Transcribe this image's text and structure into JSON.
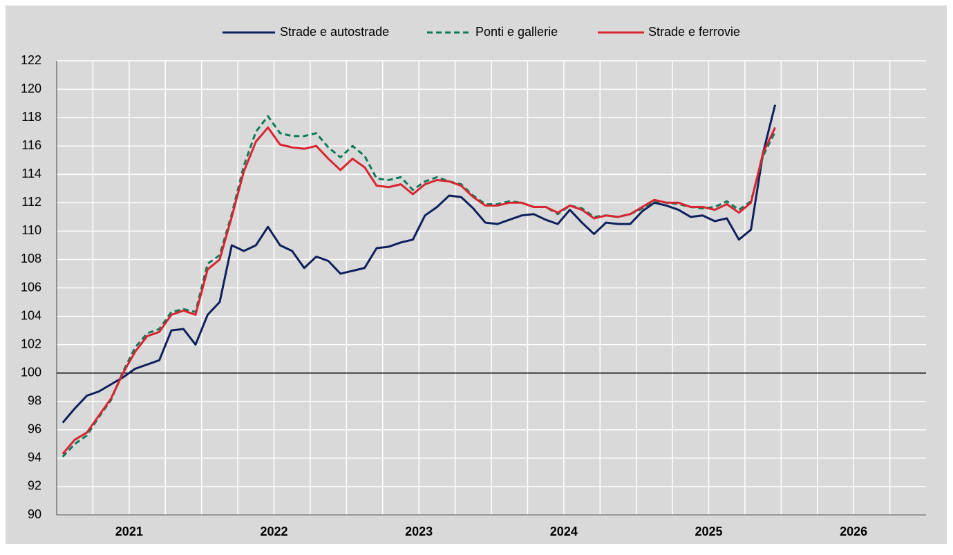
{
  "chart_data": {
    "type": "line",
    "categories": [
      "2021",
      null,
      null,
      null,
      null,
      null,
      null,
      null,
      null,
      null,
      null,
      null,
      "2022",
      null,
      null,
      null,
      null,
      null,
      null,
      null,
      null,
      null,
      null,
      null,
      "2023",
      null,
      null,
      null,
      null,
      null,
      null,
      null,
      null,
      null,
      null,
      null,
      "2024",
      null,
      null,
      null,
      null,
      null,
      null,
      null,
      null,
      null,
      null,
      null,
      "2025",
      null,
      null,
      null,
      null,
      null,
      null,
      null,
      null,
      null,
      null,
      null,
      "2026",
      null,
      null,
      null,
      null,
      null,
      null,
      null,
      null,
      null,
      null,
      null
    ],
    "series": [
      {
        "name": "Strade e autostrade",
        "color": "#0d1f5c",
        "dash": false,
        "values": [
          96.5,
          97.5,
          98.4,
          98.7,
          99.2,
          99.7,
          100.3,
          100.6,
          100.9,
          103.0,
          103.1,
          102.0,
          104.1,
          105.0,
          109.0,
          108.6,
          109.0,
          110.3,
          109.0,
          108.6,
          107.4,
          108.2,
          107.9,
          107.0,
          107.2,
          107.4,
          108.8,
          108.9,
          109.2,
          109.4,
          111.1,
          111.7,
          112.5,
          112.4,
          111.6,
          110.6,
          110.5,
          110.8,
          111.1,
          111.2,
          110.8,
          110.5,
          111.5,
          110.6,
          109.8,
          110.6,
          110.5,
          110.5,
          111.4,
          112.0,
          111.8,
          111.5,
          111.0,
          111.1,
          110.7,
          110.9,
          109.4,
          110.1,
          115.5,
          118.9,
          null,
          null,
          null,
          null,
          null,
          null,
          null,
          null,
          null,
          null,
          null,
          null
        ]
      },
      {
        "name": "Ponti e gallerie",
        "color": "#0a7a5a",
        "dash": true,
        "values": [
          94.1,
          95.0,
          95.6,
          96.9,
          98.1,
          100.1,
          101.8,
          102.8,
          103.1,
          104.3,
          104.5,
          104.3,
          107.7,
          108.3,
          111.2,
          114.6,
          117.0,
          118.1,
          116.9,
          116.7,
          116.7,
          116.9,
          115.9,
          115.2,
          116.0,
          115.3,
          113.7,
          113.6,
          113.8,
          112.9,
          113.5,
          113.8,
          113.5,
          113.3,
          112.5,
          111.9,
          111.9,
          112.1,
          112.0,
          111.7,
          111.7,
          111.2,
          111.8,
          111.6,
          111.0,
          111.1,
          111.0,
          111.2,
          111.6,
          112.1,
          112.0,
          111.9,
          111.7,
          111.6,
          111.7,
          112.1,
          111.5,
          112.1,
          115.3,
          117.0,
          null,
          null,
          null,
          null,
          null,
          null,
          null,
          null,
          null,
          null,
          null,
          null
        ]
      },
      {
        "name": "Strade e ferrovie",
        "color": "#d9242f",
        "dash": false,
        "values": [
          94.3,
          95.3,
          95.8,
          97.0,
          98.2,
          100.0,
          101.5,
          102.6,
          102.9,
          104.1,
          104.4,
          104.1,
          107.3,
          108.0,
          111.0,
          114.2,
          116.3,
          117.3,
          116.1,
          115.9,
          115.8,
          116.0,
          115.1,
          114.3,
          115.1,
          114.5,
          113.2,
          113.1,
          113.3,
          112.6,
          113.3,
          113.6,
          113.5,
          113.2,
          112.4,
          111.8,
          111.8,
          112.0,
          112.0,
          111.7,
          111.7,
          111.3,
          111.8,
          111.5,
          110.9,
          111.1,
          111.0,
          111.2,
          111.7,
          112.2,
          112.0,
          112.0,
          111.7,
          111.7,
          111.5,
          111.9,
          111.3,
          112.0,
          115.5,
          117.3,
          null,
          null,
          null,
          null,
          null,
          null,
          null,
          null,
          null,
          null,
          null,
          null
        ]
      }
    ],
    "ylim": [
      90,
      122
    ],
    "yticks": [
      90,
      92,
      94,
      96,
      98,
      100,
      102,
      104,
      106,
      108,
      110,
      112,
      114,
      116,
      118,
      120,
      122
    ],
    "reference_line": 100,
    "grid": true,
    "legend": "top"
  }
}
